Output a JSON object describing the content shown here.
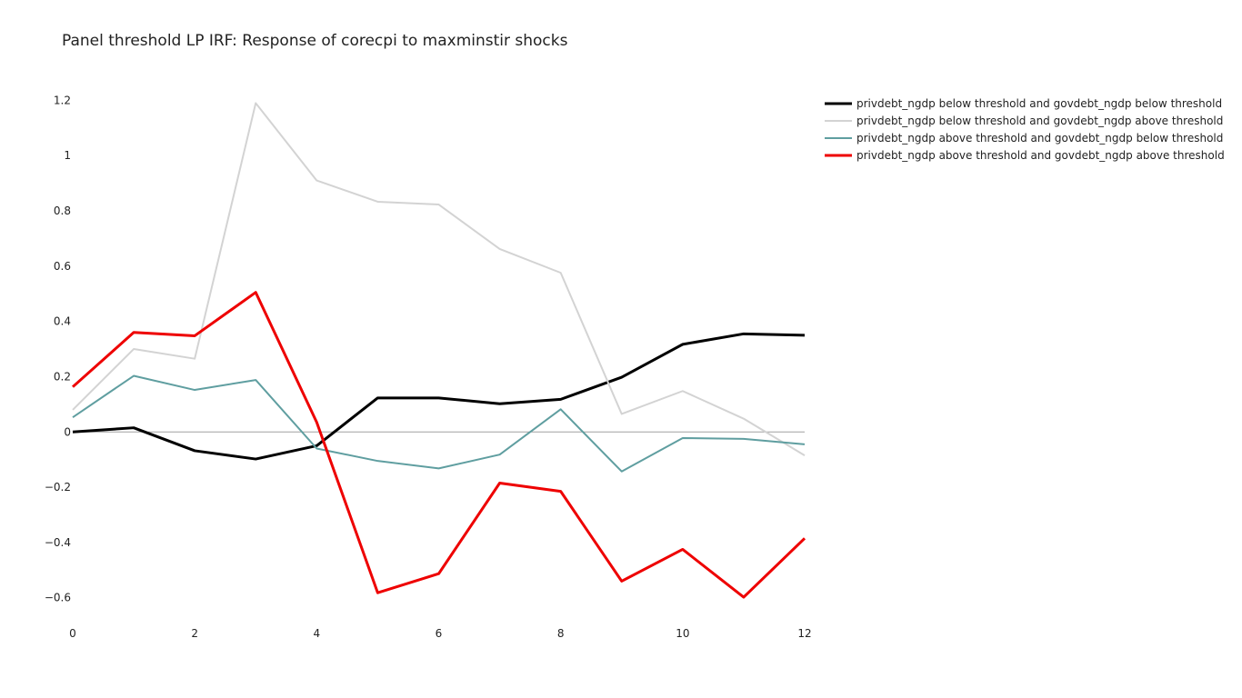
{
  "chart_data": {
    "type": "line",
    "title": "Panel threshold LP IRF: Response of corecpi to maxminstir shocks",
    "xlabel": "",
    "ylabel": "",
    "x": [
      0,
      1,
      2,
      3,
      4,
      5,
      6,
      7,
      8,
      9,
      10,
      11,
      12
    ],
    "xlim": [
      0,
      12
    ],
    "ylim": [
      -0.68,
      1.3
    ],
    "x_ticks": [
      0,
      2,
      4,
      6,
      8,
      10,
      12
    ],
    "x_tick_labels": [
      "0",
      "2",
      "4",
      "6",
      "8",
      "10",
      "12"
    ],
    "y_ticks": [
      -0.6,
      -0.4,
      -0.2,
      0,
      0.2,
      0.4,
      0.6,
      0.8,
      1,
      1.2
    ],
    "y_tick_labels": [
      "−0.6",
      "−0.4",
      "−0.2",
      "0",
      "0.2",
      "0.4",
      "0.6",
      "0.8",
      "1",
      "1.2"
    ],
    "grid": false,
    "zero_line": true,
    "legend_position": "top-right",
    "series": [
      {
        "name": "privdebt_ngdp below threshold and govdebt_ngdp below threshold",
        "color": "#000000",
        "values": [
          0.0,
          0.015,
          -0.068,
          -0.098,
          -0.05,
          0.123,
          0.123,
          0.102,
          0.118,
          0.198,
          0.317,
          0.355,
          0.35
        ]
      },
      {
        "name": "privdebt_ngdp below threshold and govdebt_ngdp above threshold",
        "color": "#d3d3d3",
        "values": [
          0.08,
          0.3,
          0.265,
          1.19,
          0.91,
          0.833,
          0.823,
          0.662,
          0.576,
          0.065,
          0.148,
          0.048,
          -0.085
        ]
      },
      {
        "name": "privdebt_ngdp above threshold and govdebt_ngdp below threshold",
        "color": "#5f9ea0",
        "values": [
          0.053,
          0.203,
          0.152,
          0.188,
          -0.06,
          -0.105,
          -0.132,
          -0.082,
          0.082,
          -0.143,
          -0.022,
          -0.025,
          -0.045
        ]
      },
      {
        "name": "privdebt_ngdp above threshold and govdebt_ngdp above threshold",
        "color": "#ee0000",
        "values": [
          0.163,
          0.36,
          0.348,
          0.505,
          0.035,
          -0.582,
          -0.513,
          -0.185,
          -0.215,
          -0.54,
          -0.425,
          -0.598,
          -0.385
        ]
      }
    ]
  }
}
